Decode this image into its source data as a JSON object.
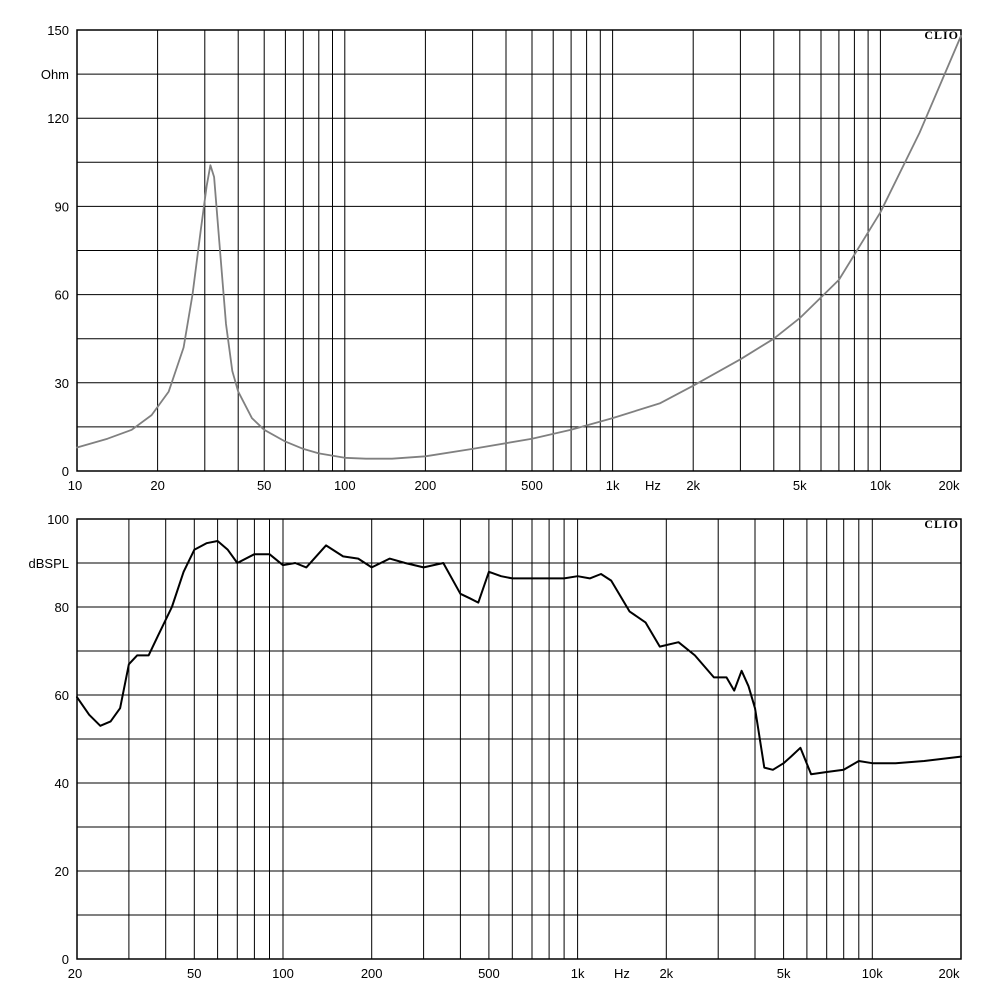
{
  "chart_data": [
    {
      "type": "line",
      "brand": "CLIO",
      "ylabel": "Ohm",
      "xlabel": "Hz",
      "x_scale": "log",
      "xlim": [
        10,
        20000
      ],
      "ylim": [
        0,
        150
      ],
      "grid": true,
      "x_ticks": [
        10,
        20,
        50,
        100,
        200,
        500,
        1000,
        2000,
        5000,
        10000,
        20000
      ],
      "x_tick_labels": [
        "10",
        "20",
        "50",
        "100",
        "200",
        "500",
        "1k",
        "2k",
        "5k",
        "10k",
        "20k"
      ],
      "y_ticks": [
        0,
        30,
        60,
        90,
        120,
        150
      ],
      "y_tick_labels": [
        "0",
        "30",
        "60",
        "90",
        "120",
        "150"
      ],
      "line_color": "#808080",
      "series": [
        {
          "x": [
            10,
            13,
            16,
            19,
            22,
            25,
            27,
            29,
            30.5,
            31.5,
            32.5,
            34,
            36,
            38,
            40,
            45,
            50,
            60,
            70,
            80,
            100,
            120,
            150,
            200,
            300,
            500,
            700,
            1000,
            1500,
            2000,
            3000,
            4000,
            5000,
            7000,
            10000,
            14000,
            20000
          ],
          "y": [
            8,
            11,
            14,
            19,
            27,
            42,
            60,
            82,
            97,
            104,
            100,
            78,
            50,
            34,
            27,
            18,
            14,
            10,
            7.5,
            6,
            4.5,
            4.2,
            4.2,
            5,
            7.5,
            11,
            14,
            18,
            23,
            29,
            38,
            45,
            52,
            65,
            88,
            115,
            148
          ]
        }
      ]
    },
    {
      "type": "line",
      "brand": "CLIO",
      "ylabel": "dBSPL",
      "xlabel": "Hz",
      "x_scale": "log",
      "xlim": [
        20,
        20000
      ],
      "ylim": [
        0,
        100
      ],
      "grid": true,
      "x_ticks": [
        20,
        50,
        100,
        200,
        500,
        1000,
        2000,
        5000,
        10000,
        20000
      ],
      "x_tick_labels": [
        "20",
        "50",
        "100",
        "200",
        "500",
        "1k",
        "2k",
        "5k",
        "10k",
        "20k"
      ],
      "y_ticks": [
        0,
        20,
        40,
        60,
        80,
        100
      ],
      "y_tick_labels": [
        "0",
        "20",
        "40",
        "60",
        "80",
        "100"
      ],
      "line_color": "#000000",
      "series": [
        {
          "x": [
            20,
            22,
            24,
            26,
            28,
            30,
            32,
            35,
            38,
            42,
            46,
            50,
            55,
            60,
            65,
            70,
            80,
            90,
            100,
            110,
            120,
            140,
            160,
            180,
            200,
            230,
            260,
            300,
            350,
            400,
            430,
            460,
            500,
            550,
            600,
            700,
            800,
            900,
            1000,
            1100,
            1200,
            1300,
            1500,
            1700,
            1900,
            2200,
            2500,
            2900,
            3200,
            3400,
            3600,
            3800,
            4000,
            4300,
            4600,
            5000,
            5300,
            5700,
            6200,
            7000,
            8000,
            9000,
            10000,
            12000,
            15000,
            20000
          ],
          "y": [
            59.5,
            55.5,
            53,
            54,
            57,
            67,
            69,
            69,
            74,
            80,
            88,
            93,
            94.5,
            95,
            93,
            90,
            92,
            92,
            89.5,
            90,
            89,
            94,
            91.5,
            91,
            89,
            91,
            90,
            89,
            90,
            83,
            82,
            81,
            88,
            87,
            86.5,
            86.5,
            86.5,
            86.5,
            87,
            86.5,
            87.5,
            86,
            79,
            76.5,
            71,
            72,
            69,
            64,
            64,
            61,
            65.5,
            62,
            57,
            43.5,
            43,
            44.5,
            46,
            48,
            42,
            42.5,
            43,
            45,
            44.5,
            44.5,
            45,
            46
          ]
        }
      ]
    }
  ]
}
